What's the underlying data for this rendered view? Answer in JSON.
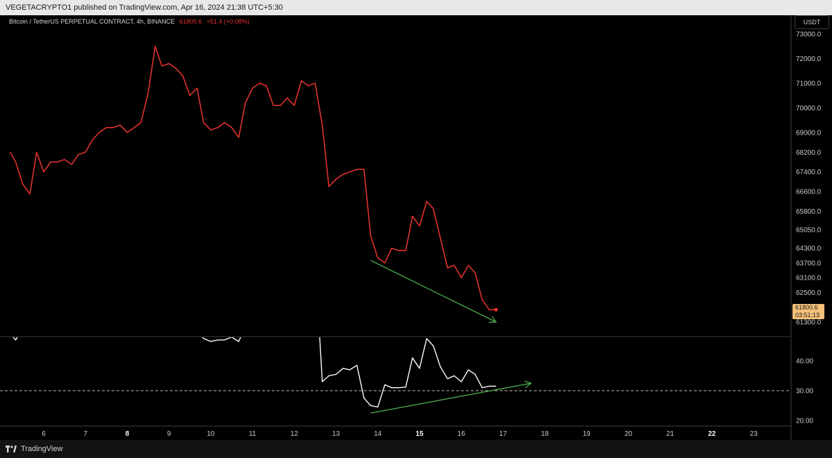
{
  "header": {
    "text": "VEGETACRYPTO1 published on TradingView.com, Apr 16, 2024 21:38 UTC+5:30"
  },
  "legend": {
    "symbol": "Bitcoin / TetherUS PERPETUAL CONTRACT, 4h, BINANCE",
    "price": "61800.6",
    "change": "+51.4 (+0.08%)"
  },
  "price_axis": {
    "unit": "USDT",
    "badge_price": "61800.6",
    "badge_countdown": "03:51:13"
  },
  "footer": {
    "brand": "TradingView"
  },
  "colors": {
    "price_line": "#e0322d",
    "indicator_line": "#ffffff",
    "trend_arrow": "#4caf50",
    "badge": "#f4c07a"
  },
  "chart_data": [
    {
      "type": "line",
      "title": "Bitcoin / TetherUS PERPETUAL CONTRACT, 4h, BINANCE",
      "xlabel": "",
      "ylabel": "",
      "x": [
        5.2,
        5.33,
        5.5,
        5.67,
        5.83,
        6.0,
        6.17,
        6.33,
        6.5,
        6.67,
        6.83,
        7.0,
        7.17,
        7.33,
        7.5,
        7.67,
        7.83,
        8.0,
        8.17,
        8.33,
        8.5,
        8.67,
        8.83,
        9.0,
        9.17,
        9.33,
        9.5,
        9.67,
        9.83,
        10.0,
        10.17,
        10.33,
        10.5,
        10.67,
        10.83,
        11.0,
        11.17,
        11.33,
        11.5,
        11.67,
        11.83,
        12.0,
        12.17,
        12.33,
        12.5,
        12.67,
        12.83,
        13.0,
        13.17,
        13.33,
        13.5,
        13.67,
        13.83,
        14.0,
        14.17,
        14.33,
        14.5,
        14.67,
        14.83,
        15.0,
        15.17,
        15.33,
        15.5,
        15.67,
        15.83,
        16.0,
        16.17,
        16.33,
        16.5,
        16.67,
        16.83
      ],
      "series": [
        {
          "values": [
            68200,
            67800,
            66900,
            66500,
            68200,
            67400,
            67800,
            67800,
            67900,
            67700,
            68100,
            68200,
            68700,
            69000,
            69200,
            69200,
            69300,
            69000,
            69200,
            69400,
            70600,
            72500,
            71700,
            71800,
            71600,
            71300,
            70500,
            70800,
            69400,
            69100,
            69200,
            69400,
            69200,
            68800,
            70200,
            70800,
            71000,
            70900,
            70100,
            70100,
            70400,
            70100,
            71100,
            70900,
            71000,
            69300,
            66800,
            67100,
            67300,
            67400,
            67500,
            67500,
            64800,
            63900,
            63700,
            64300,
            64200,
            64200,
            65600,
            65200,
            66200,
            65900,
            64700,
            63500,
            63600,
            63100,
            63600,
            63300,
            62200,
            61800,
            61800
          ]
        }
      ],
      "arrows": [
        {
          "from": [
            13.83,
            63800
          ],
          "to": [
            16.83,
            61300
          ]
        }
      ],
      "ylim": [
        60900,
        73300
      ],
      "y_ticks": [
        "73000.0",
        "72000.0",
        "71000.0",
        "70000.0",
        "69000.0",
        "68200.0",
        "67400.0",
        "66600.0",
        "65800.0",
        "65050.0",
        "64300.0",
        "63700.0",
        "63100.0",
        "62500.0",
        "61300.0"
      ],
      "x_ticks": [
        "6",
        "7",
        "8",
        "9",
        "10",
        "11",
        "12",
        "13",
        "14",
        "15",
        "16",
        "17",
        "18",
        "19",
        "20",
        "21",
        "22",
        "23"
      ],
      "x_ticks_bold": [
        "8",
        "15",
        "22"
      ],
      "last_value": 61800.6
    },
    {
      "type": "line",
      "title": "",
      "series": [
        {
          "x": [
            5.2,
            5.33,
            5.45,
            9.67,
            9.83,
            10.0,
            10.17,
            10.33,
            10.5,
            10.67,
            10.75,
            12.6,
            12.67,
            12.83,
            13.0,
            13.17,
            13.33,
            13.5,
            13.67,
            13.83,
            14.0,
            14.17,
            14.33,
            14.5,
            14.67,
            14.83,
            15.0,
            15.17,
            15.33,
            15.5,
            15.67,
            15.83,
            16.0,
            16.17,
            16.33,
            16.5,
            16.67,
            16.83
          ],
          "values": [
            49,
            47,
            50,
            50,
            47.5,
            46.5,
            47,
            47,
            48,
            46.5,
            49,
            50,
            33,
            35,
            35.5,
            37.5,
            37,
            38.5,
            27.5,
            25,
            24.5,
            32,
            31,
            31,
            31.2,
            41,
            37.5,
            47.5,
            45,
            38,
            34,
            35,
            33,
            37,
            35.5,
            31,
            31.5,
            31.5
          ]
        }
      ],
      "arrows": [
        {
          "from": [
            13.83,
            22.5
          ],
          "to": [
            17.67,
            32.5
          ]
        }
      ],
      "reference_line": 30,
      "ylim": [
        17,
        49.5
      ],
      "y_ticks": [
        "40.00",
        "30.00",
        "20.00"
      ]
    }
  ]
}
